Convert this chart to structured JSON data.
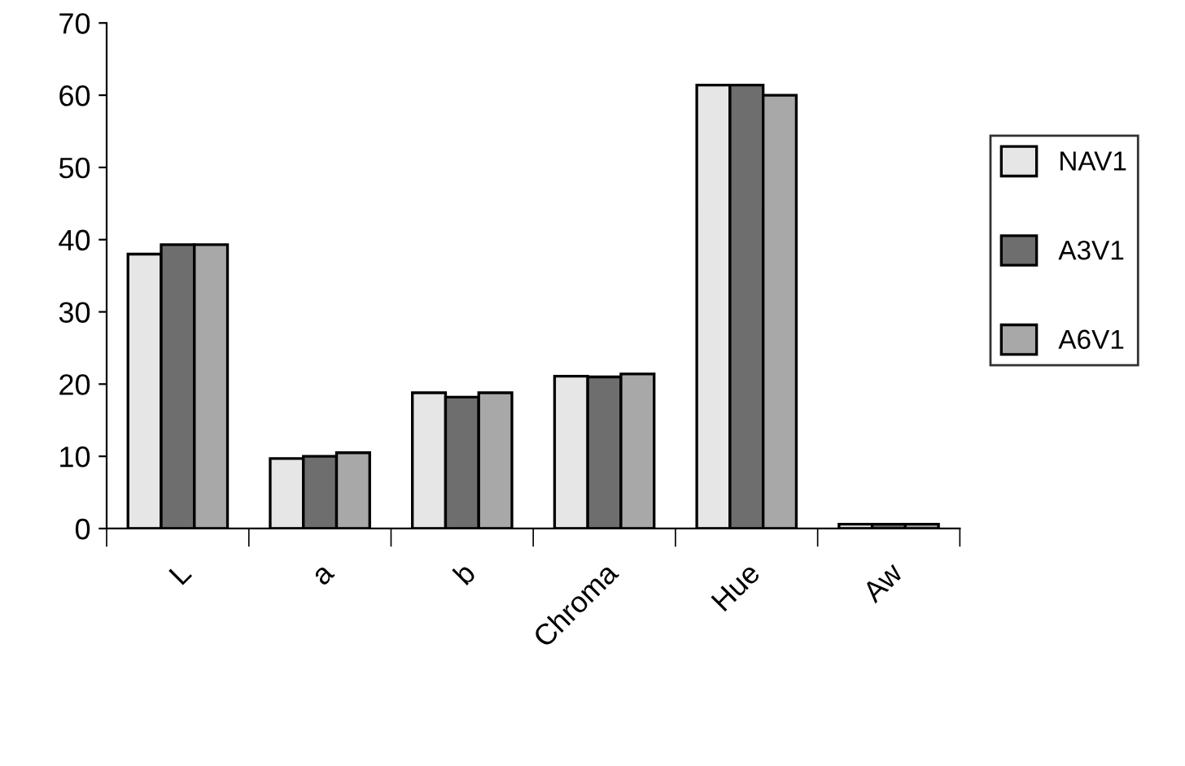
{
  "chart_data": {
    "type": "bar",
    "categories": [
      "L",
      "a",
      "b",
      "Chroma",
      "Hue",
      "Aw"
    ],
    "series": [
      {
        "name": "NAV1",
        "color": "#e6e6e6",
        "values": [
          38,
          9.7,
          18.8,
          21.1,
          61.4,
          0.6
        ]
      },
      {
        "name": "A3V1",
        "color": "#6e6e6e",
        "values": [
          39.3,
          10,
          18.2,
          21,
          61.4,
          0.6
        ]
      },
      {
        "name": "A6V1",
        "color": "#a8a8a8",
        "values": [
          39.3,
          10.5,
          18.8,
          21.4,
          60,
          0.6
        ]
      }
    ],
    "ylim": [
      0,
      70
    ],
    "yticks": [
      0,
      10,
      20,
      30,
      40,
      50,
      60,
      70
    ],
    "grid": false,
    "legend": "right"
  }
}
